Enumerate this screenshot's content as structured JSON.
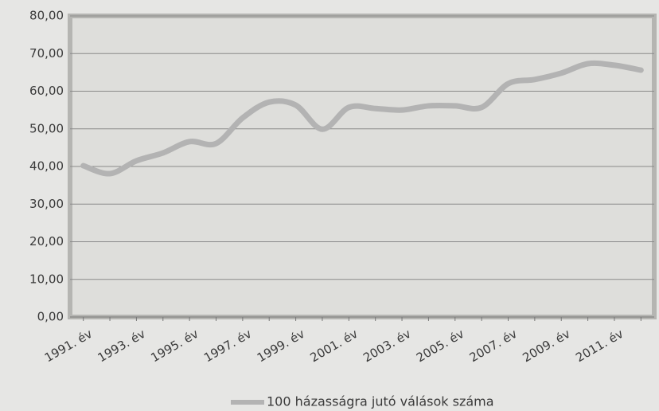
{
  "chart_data": {
    "type": "line",
    "categories": [
      "1991. év",
      null,
      "1993. év",
      null,
      "1995. év",
      null,
      "1997. év",
      null,
      "1999. év",
      null,
      "2001. év",
      null,
      "2003. év",
      null,
      "2005. év",
      null,
      "2007. év",
      null,
      "2009. év",
      null,
      "2011. év",
      null
    ],
    "series": [
      {
        "name": "100 házasságra jutó válások száma",
        "color": "#b3b3b3",
        "values": [
          40.2,
          38.1,
          41.5,
          43.6,
          46.6,
          46.1,
          52.9,
          57.1,
          56.3,
          49.9,
          55.7,
          55.4,
          55.0,
          56.1,
          56.1,
          55.7,
          62.0,
          63.1,
          64.8,
          67.3,
          66.9,
          65.6
        ]
      }
    ],
    "ylim": [
      0,
      80
    ],
    "yticks": [
      {
        "value": 0,
        "label": "0,00"
      },
      {
        "value": 10,
        "label": "10,00"
      },
      {
        "value": 20,
        "label": "20,00"
      },
      {
        "value": 30,
        "label": "30,00"
      },
      {
        "value": 40,
        "label": "40,00"
      },
      {
        "value": 50,
        "label": "50,00"
      },
      {
        "value": 60,
        "label": "60,00"
      },
      {
        "value": 70,
        "label": "70,00"
      },
      {
        "value": 80,
        "label": "80,00"
      }
    ],
    "grid": true,
    "legend": "bottom"
  }
}
